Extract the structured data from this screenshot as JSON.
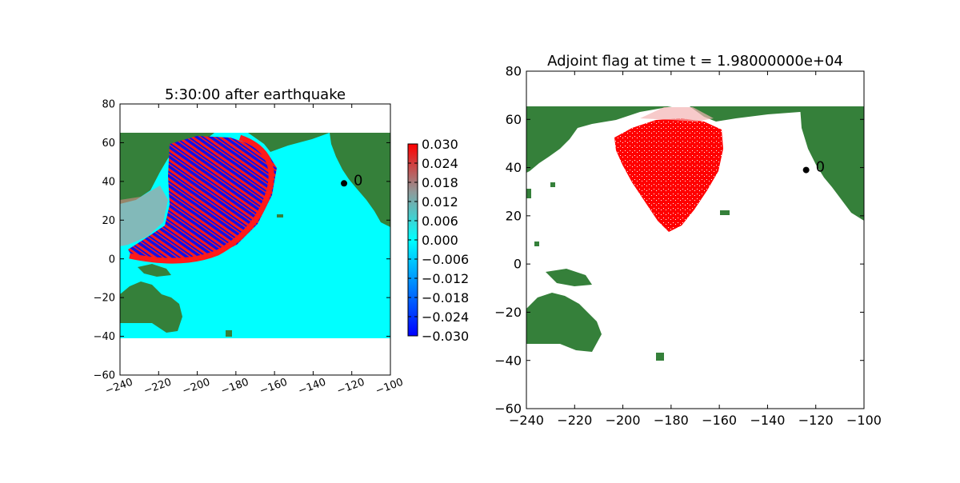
{
  "colors": {
    "land": "#35803a",
    "land_light": "#7cab28",
    "ocean": "#00ffff",
    "wave_red": "#ff1a1a",
    "wave_blue": "#1010e8",
    "flag_red": "#ff0000",
    "gauge": "#000000"
  },
  "chart_data": [
    {
      "type": "heatmap",
      "title": "5:30:00 after earthquake",
      "xlabel": "",
      "ylabel": "",
      "xlim": [
        -240,
        -100
      ],
      "ylim": [
        -60,
        80
      ],
      "domain_lat": [
        -40,
        65
      ],
      "xticks": [
        "−240",
        "−220",
        "−200",
        "−180",
        "−160",
        "−140",
        "−120",
        "−100"
      ],
      "yticks": [
        "−60",
        "−40",
        "−20",
        "0",
        "20",
        "40",
        "60",
        "80"
      ],
      "xtick_values": [
        -240,
        -220,
        -200,
        -180,
        -160,
        -140,
        -120,
        -100
      ],
      "ytick_values": [
        -60,
        -40,
        -20,
        0,
        20,
        40,
        60,
        80
      ],
      "colorbar": {
        "min": -0.03,
        "max": 0.03,
        "ticks": [
          "0.030",
          "0.024",
          "0.018",
          "0.012",
          "0.006",
          "0.000",
          "−0.006",
          "−0.012",
          "−0.018",
          "−0.024",
          "−0.030"
        ]
      },
      "gauge": {
        "label": "0",
        "lon": -124,
        "lat": 39
      }
    },
    {
      "type": "heatmap",
      "title": "Adjoint flag at time t = 1.98000000e+04",
      "xlabel": "",
      "ylabel": "",
      "xlim": [
        -240,
        -100
      ],
      "ylim": [
        -60,
        80
      ],
      "domain_lat": [
        -33,
        65
      ],
      "xticks": [
        "−240",
        "−220",
        "−200",
        "−180",
        "−160",
        "−140",
        "−120",
        "−100"
      ],
      "yticks": [
        "−60",
        "−40",
        "−20",
        "0",
        "20",
        "40",
        "60",
        "80"
      ],
      "xtick_values": [
        -240,
        -220,
        -200,
        -180,
        -160,
        -140,
        -120,
        -100
      ],
      "ytick_values": [
        -60,
        -40,
        -20,
        0,
        20,
        40,
        60,
        80
      ],
      "gauge": {
        "label": "0",
        "lon": -124,
        "lat": 39
      }
    }
  ]
}
